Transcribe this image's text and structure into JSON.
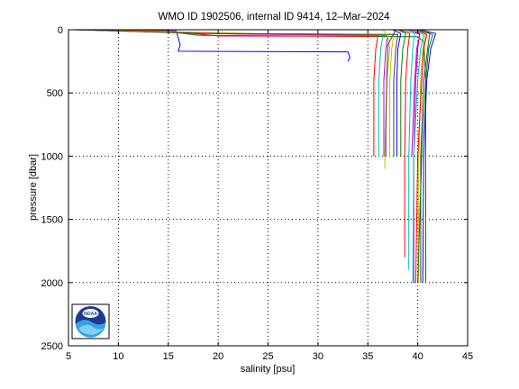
{
  "chart_data": {
    "type": "line",
    "title": "WMO ID 1902506, internal ID 9414, 12–Mar–2024",
    "xlabel": "salinity [psu]",
    "ylabel": "pressure [dbar]",
    "xlim": [
      5,
      45
    ],
    "ylim": [
      0,
      2500
    ],
    "y_reversed": true,
    "x_ticks": [
      5,
      10,
      15,
      20,
      25,
      30,
      35,
      40,
      45
    ],
    "y_ticks": [
      0,
      500,
      1000,
      1500,
      2000,
      2500
    ],
    "grid": true,
    "grid_style": "dotted",
    "legend": "none",
    "logo": "NOAA",
    "series": [
      {
        "color": "#0000ff",
        "x": [
          5.5,
          12.0,
          15.8,
          16.2,
          16.0,
          33.0,
          33.2,
          33.0
        ],
        "y": [
          0,
          3,
          10,
          120,
          170,
          175,
          220,
          250
        ]
      },
      {
        "color": "#008000",
        "x": [
          5.5,
          14.5,
          18.0,
          40.0,
          40.6,
          40.8,
          40.8
        ],
        "y": [
          0,
          8,
          45,
          55,
          95,
          400,
          2000
        ]
      },
      {
        "color": "#ff0000",
        "x": [
          5.5,
          15.0,
          20.0,
          36.0,
          35.8,
          35.6,
          35.6
        ],
        "y": [
          0,
          10,
          50,
          52,
          150,
          400,
          1000
        ]
      },
      {
        "color": "#00bfbf",
        "x": [
          5.5,
          20.0,
          36.5,
          36.3,
          36.1,
          36.1
        ],
        "y": [
          0,
          30,
          40,
          150,
          400,
          1000
        ]
      },
      {
        "color": "#bf00bf",
        "x": [
          5.5,
          22.0,
          37.0,
          36.8,
          36.6,
          36.6
        ],
        "y": [
          0,
          35,
          45,
          150,
          400,
          1000
        ]
      },
      {
        "color": "#bfbf00",
        "x": [
          6.0,
          24.0,
          37.6,
          37.4,
          37.2,
          37.2
        ],
        "y": [
          0,
          30,
          40,
          150,
          400,
          1000
        ]
      },
      {
        "color": "#404040",
        "x": [
          6.0,
          18.0,
          38.0,
          37.8,
          37.6,
          37.6
        ],
        "y": [
          0,
          30,
          38,
          150,
          400,
          1000
        ]
      },
      {
        "color": "#0000ff",
        "x": [
          37.5,
          38.3,
          38.0,
          37.9,
          37.9
        ],
        "y": [
          0,
          30,
          150,
          400,
          1000
        ]
      },
      {
        "color": "#008000",
        "x": [
          38.0,
          38.8,
          38.5,
          38.3,
          38.3
        ],
        "y": [
          0,
          30,
          150,
          400,
          1000
        ]
      },
      {
        "color": "#ff0000",
        "x": [
          38.2,
          39.2,
          39.0,
          38.8,
          38.7,
          38.7
        ],
        "y": [
          0,
          30,
          150,
          400,
          1000,
          1800
        ]
      },
      {
        "color": "#00bfbf",
        "x": [
          38.6,
          39.7,
          39.5,
          39.3,
          39.1,
          39.1
        ],
        "y": [
          0,
          30,
          150,
          400,
          1000,
          1900
        ]
      },
      {
        "color": "#bf00bf",
        "x": [
          39.0,
          40.2,
          40.0,
          39.8,
          39.6,
          39.6
        ],
        "y": [
          0,
          30,
          150,
          400,
          1000,
          2000
        ]
      },
      {
        "color": "#bfbf00",
        "x": [
          39.4,
          40.8,
          40.5,
          40.3,
          40.1,
          40.1
        ],
        "y": [
          0,
          30,
          150,
          400,
          1000,
          2000
        ]
      },
      {
        "color": "#404040",
        "x": [
          39.8,
          41.2,
          41.0,
          40.6,
          40.3,
          40.3
        ],
        "y": [
          0,
          30,
          150,
          400,
          1000,
          2000
        ]
      },
      {
        "color": "#0000ff",
        "x": [
          40.2,
          41.8,
          41.3,
          40.9,
          40.6,
          40.5
        ],
        "y": [
          0,
          30,
          150,
          400,
          1000,
          2000
        ]
      },
      {
        "color": "#008000",
        "x": [
          40.5,
          41.5,
          41.1,
          40.8,
          40.4,
          40.0
        ],
        "y": [
          0,
          40,
          150,
          400,
          1000,
          2000
        ]
      },
      {
        "color": "#ff0000",
        "x": [
          40.0,
          40.9,
          40.6,
          40.4,
          40.0,
          39.8
        ],
        "y": [
          0,
          40,
          150,
          400,
          1000,
          2000
        ]
      },
      {
        "color": "#00bfbf",
        "x": [
          39.6,
          40.6,
          40.3,
          40.0,
          39.6,
          39.5
        ],
        "y": [
          0,
          40,
          150,
          400,
          1000,
          2000
        ]
      },
      {
        "color": "#bf00bf",
        "x": [
          39.2,
          40.2,
          39.9,
          39.7,
          39.4
        ],
        "y": [
          0,
          40,
          150,
          400,
          1000
        ]
      },
      {
        "color": "#bfbf00",
        "x": [
          36.5,
          37.0,
          37.2,
          36.9,
          36.7,
          36.7
        ],
        "y": [
          0,
          50,
          150,
          400,
          1000,
          1100
        ]
      },
      {
        "color": "#404040",
        "x": [
          37.8,
          37.0,
          36.9,
          36.8,
          36.8
        ],
        "y": [
          0,
          120,
          400,
          800,
          1000
        ]
      }
    ]
  }
}
